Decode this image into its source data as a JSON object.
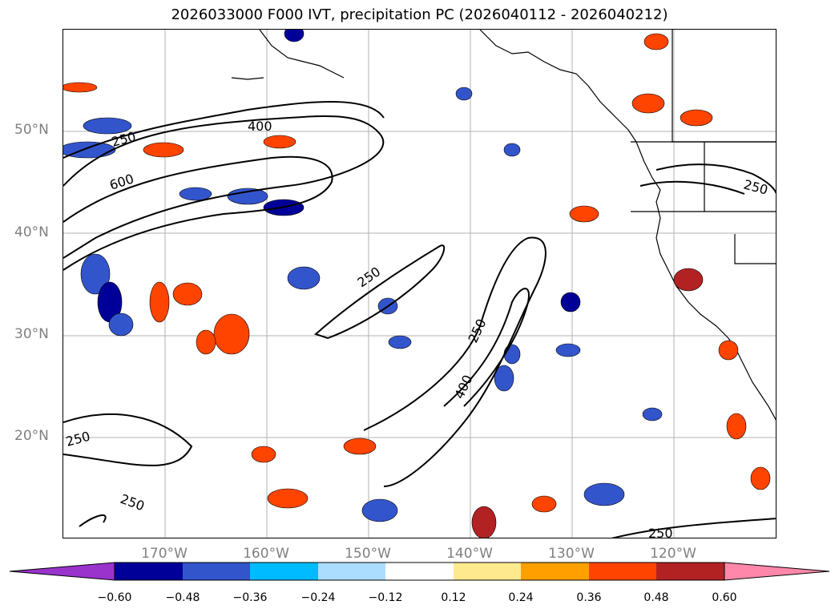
{
  "title": "2026033000 F000 IVT, precipitation PC (2026040112 - 2026040212)",
  "lat_labels": [
    "50°N",
    "40°N",
    "30°N",
    "20°N"
  ],
  "lon_labels": [
    "170°W",
    "160°W",
    "150°W",
    "140°W",
    "130°W",
    "120°W"
  ],
  "contour_labels": [
    "250",
    "400",
    "250",
    "600",
    "250",
    "250",
    "400",
    "250",
    "250",
    "250"
  ],
  "colorbar": {
    "ticks": [
      "−0.60",
      "−0.48",
      "−0.36",
      "−0.24",
      "−0.12",
      "0.12",
      "0.24",
      "0.36",
      "0.48",
      "0.60"
    ],
    "colors": [
      "#9933cc",
      "#000099",
      "#3355cc",
      "#00bbff",
      "#aaddff",
      "#ffffff",
      "#ffe98f",
      "#ffa000",
      "#ff4400",
      "#b22222",
      "#ff88aa"
    ]
  }
}
